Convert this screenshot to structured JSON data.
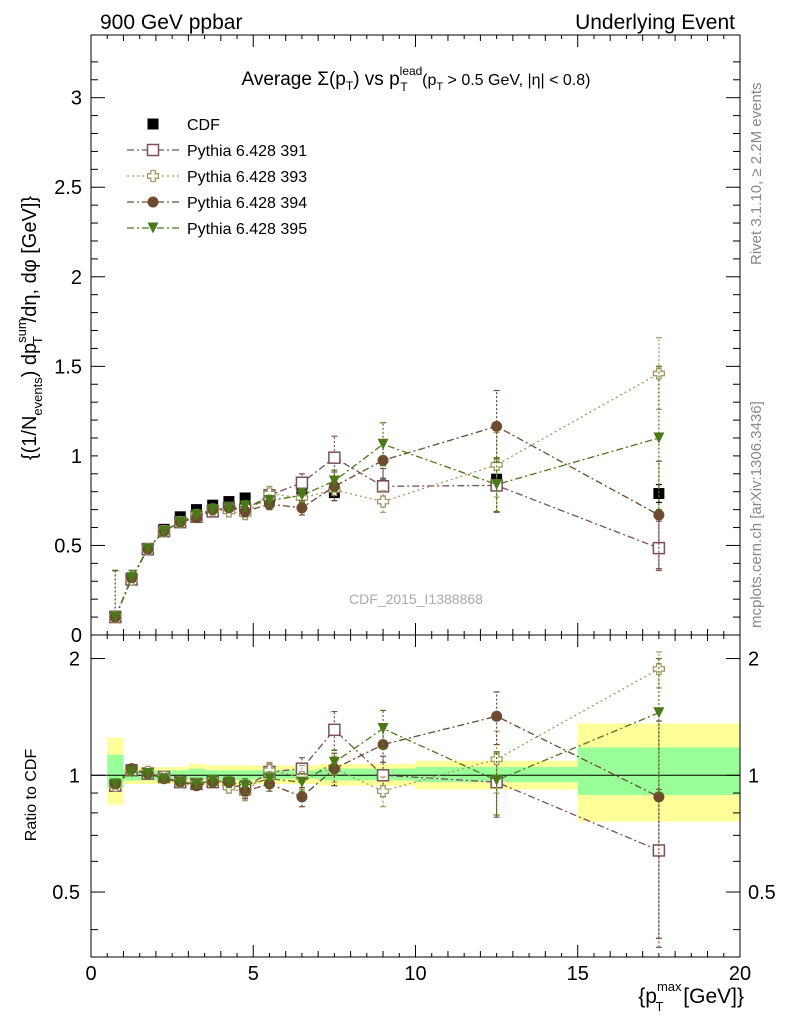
{
  "header": {
    "left": "900 GeV ppbar",
    "right": "Underlying Event"
  },
  "side_text": {
    "rivet": "Rivet 3.1.10, ≥ 2.2M events",
    "mcplots": "mcplots.cern.ch [arXiv:1306.3436]"
  },
  "watermark": "CDF_2015_I1388868",
  "chart_data": [
    {
      "type": "scatter",
      "title": "Average Σ(p_T) vs p_T^lead (p_T > 0.5 GeV, |η| < 0.8)",
      "title_parts": {
        "pre": "Average ",
        "sigma": "Σ(p",
        "sub_t1": "T",
        "mid": ") vs p",
        "sup_lead": "lead",
        "sub_t2": "T",
        "post1": " (p",
        "sub_t3": "T",
        "post2": " > 0.5 GeV, |η| < 0.8)"
      },
      "ylabel": "{(1/N_events) dp_T^sum/dη, dφ [GeV]}",
      "ylabel_parts": {
        "a": "{(1/N",
        "sub_events": "events",
        "b": ") dp",
        "sup_sum": "sum",
        "sub_t": "T",
        "c": "/dη, dφ [GeV]}"
      },
      "xlim": [
        0,
        20
      ],
      "ylim": [
        0,
        3.35
      ],
      "yticks": [
        "0",
        "0.5",
        "1",
        "1.5",
        "2",
        "2.5",
        "3"
      ],
      "legend_position": "top-left",
      "x": [
        0.75,
        1.25,
        1.75,
        2.25,
        2.75,
        3.25,
        3.75,
        4.25,
        4.75,
        5.5,
        6.5,
        7.5,
        9.0,
        12.5,
        17.5
      ],
      "series": [
        {
          "name": "CDF",
          "color": "#000000",
          "marker": "square-filled",
          "line": "none",
          "values": [
            0.105,
            0.315,
            0.475,
            0.59,
            0.66,
            0.7,
            0.725,
            0.745,
            0.765,
            0.76,
            0.815,
            0.795,
            0.835,
            0.87,
            0.79
          ],
          "err": [
            0.01,
            0.01,
            0.01,
            0.01,
            0.01,
            0.01,
            0.01,
            0.01,
            0.01,
            0.01,
            0.02,
            0.02,
            0.03,
            0.05,
            0.05
          ]
        },
        {
          "name": "Pythia 6.428 391",
          "color": "#7a4f5e",
          "marker": "square-open",
          "line": "dashdot",
          "values": [
            0.1,
            0.31,
            0.48,
            0.58,
            0.63,
            0.66,
            0.69,
            0.71,
            0.7,
            0.78,
            0.85,
            0.99,
            0.83,
            0.835,
            0.485
          ],
          "err": [
            0.01,
            0.01,
            0.01,
            0.01,
            0.01,
            0.01,
            0.02,
            0.02,
            0.03,
            0.04,
            0.05,
            0.12,
            0.1,
            0.15,
            0.15
          ]
        },
        {
          "name": "Pythia 6.428 393",
          "color": "#a39866",
          "marker": "cross-open",
          "line": "dotted",
          "values": [
            0.1,
            0.31,
            0.48,
            0.58,
            0.63,
            0.67,
            0.7,
            0.69,
            0.675,
            0.79,
            0.765,
            0.81,
            0.745,
            0.95,
            1.46
          ],
          "err": [
            0.01,
            0.01,
            0.01,
            0.01,
            0.01,
            0.01,
            0.02,
            0.02,
            0.03,
            0.04,
            0.05,
            0.06,
            0.06,
            0.18,
            0.2
          ]
        },
        {
          "name": "Pythia 6.428 394",
          "color": "#6e4a2e",
          "marker": "circle-filled",
          "line": "dashdot",
          "values": [
            0.1,
            0.32,
            0.48,
            0.58,
            0.63,
            0.655,
            0.7,
            0.71,
            0.69,
            0.73,
            0.71,
            0.83,
            0.975,
            1.165,
            0.67
          ],
          "err": [
            0.01,
            0.01,
            0.01,
            0.01,
            0.01,
            0.01,
            0.02,
            0.02,
            0.03,
            0.03,
            0.04,
            0.08,
            0.1,
            0.2,
            0.3
          ]
        },
        {
          "name": "Pythia 6.428 395",
          "color": "#4a7a18",
          "marker": "triangle-down",
          "line": "dashdot",
          "values": [
            0.1,
            0.32,
            0.48,
            0.58,
            0.63,
            0.67,
            0.7,
            0.71,
            0.72,
            0.75,
            0.78,
            0.86,
            1.065,
            0.84,
            1.1
          ],
          "err": [
            0.01,
            0.01,
            0.01,
            0.01,
            0.01,
            0.01,
            0.02,
            0.02,
            0.03,
            0.03,
            0.04,
            0.06,
            0.12,
            0.15,
            0.4
          ]
        }
      ]
    },
    {
      "type": "scatter",
      "title": "",
      "ylabel": "Ratio to CDF",
      "xlabel": "{p_T^max [GeV]}",
      "xlabel_parts": {
        "a": "{p",
        "sup_max": "max",
        "sub_t": "T",
        "b": " [GeV]}"
      },
      "xlim": [
        0,
        20
      ],
      "ylim": [
        0.34,
        2.3
      ],
      "xticks": [
        "0",
        "5",
        "10",
        "15",
        "20"
      ],
      "yticks": [
        "0.5",
        "1",
        "2"
      ],
      "bands": [
        {
          "x0": 0.5,
          "x1": 1.0,
          "y_lo": 0.84,
          "y_hi": 1.25,
          "g_lo": 0.93,
          "g_hi": 1.13
        },
        {
          "x0": 1.0,
          "x1": 3.0,
          "y_lo": 0.95,
          "y_hi": 1.05,
          "g_lo": 0.97,
          "g_hi": 1.03
        },
        {
          "x0": 3.0,
          "x1": 3.5,
          "y_lo": 0.94,
          "y_hi": 1.07,
          "g_lo": 0.97,
          "g_hi": 1.04
        },
        {
          "x0": 3.5,
          "x1": 5.0,
          "y_lo": 0.94,
          "y_hi": 1.06,
          "g_lo": 0.97,
          "g_hi": 1.03
        },
        {
          "x0": 5.0,
          "x1": 7.0,
          "y_lo": 0.95,
          "y_hi": 1.06,
          "g_lo": 0.98,
          "g_hi": 1.03
        },
        {
          "x0": 7.0,
          "x1": 8.0,
          "y_lo": 0.94,
          "y_hi": 1.07,
          "g_lo": 0.97,
          "g_hi": 1.04
        },
        {
          "x0": 8.0,
          "x1": 10.0,
          "y_lo": 0.94,
          "y_hi": 1.07,
          "g_lo": 0.97,
          "g_hi": 1.04
        },
        {
          "x0": 10.0,
          "x1": 15.0,
          "y_lo": 0.92,
          "y_hi": 1.09,
          "g_lo": 0.96,
          "g_hi": 1.05
        },
        {
          "x0": 15.0,
          "x1": 20.0,
          "y_lo": 0.76,
          "y_hi": 1.36,
          "g_lo": 0.89,
          "g_hi": 1.18
        }
      ],
      "x": [
        0.75,
        1.25,
        1.75,
        2.25,
        2.75,
        3.25,
        3.75,
        4.25,
        4.75,
        5.5,
        6.5,
        7.5,
        9.0,
        12.5,
        17.5
      ],
      "series": [
        {
          "name": "Pythia 6.428 391",
          "color": "#7a4f5e",
          "marker": "square-open",
          "line": "dashdot",
          "values": [
            0.94,
            1.03,
            1.01,
            0.99,
            0.96,
            0.95,
            0.96,
            0.95,
            0.93,
            1.02,
            1.04,
            1.31,
            1.0,
            0.96,
            0.64
          ],
          "err": [
            0.02,
            0.02,
            0.02,
            0.02,
            0.02,
            0.02,
            0.03,
            0.03,
            0.04,
            0.05,
            0.07,
            0.15,
            0.12,
            0.18,
            0.28
          ]
        },
        {
          "name": "Pythia 6.428 393",
          "color": "#a39866",
          "marker": "cross-open",
          "line": "dotted",
          "values": [
            0.94,
            1.03,
            1.02,
            0.99,
            0.96,
            0.95,
            0.96,
            0.93,
            0.9,
            1.03,
            0.99,
            1.04,
            0.91,
            1.1,
            1.88
          ],
          "err": [
            0.02,
            0.02,
            0.02,
            0.02,
            0.02,
            0.02,
            0.03,
            0.03,
            0.04,
            0.05,
            0.07,
            0.08,
            0.08,
            0.2,
            0.2
          ]
        },
        {
          "name": "Pythia 6.428 394",
          "color": "#6e4a2e",
          "marker": "circle-filled",
          "line": "dashdot",
          "values": [
            0.95,
            1.04,
            1.01,
            0.98,
            0.96,
            0.94,
            0.96,
            0.96,
            0.91,
            0.95,
            0.88,
            1.04,
            1.2,
            1.42,
            0.88
          ],
          "err": [
            0.02,
            0.02,
            0.02,
            0.02,
            0.02,
            0.02,
            0.03,
            0.03,
            0.04,
            0.04,
            0.05,
            0.1,
            0.12,
            0.22,
            0.5
          ]
        },
        {
          "name": "Pythia 6.428 395",
          "color": "#4a7a18",
          "marker": "triangle-down",
          "line": "dashdot",
          "values": [
            0.95,
            1.02,
            1.01,
            0.98,
            0.96,
            0.95,
            0.97,
            0.96,
            0.94,
            0.98,
            0.96,
            1.08,
            1.32,
            0.97,
            1.45
          ],
          "err": [
            0.02,
            0.02,
            0.02,
            0.02,
            0.02,
            0.02,
            0.03,
            0.03,
            0.04,
            0.04,
            0.05,
            0.08,
            0.15,
            0.18,
            0.55
          ]
        }
      ]
    }
  ]
}
